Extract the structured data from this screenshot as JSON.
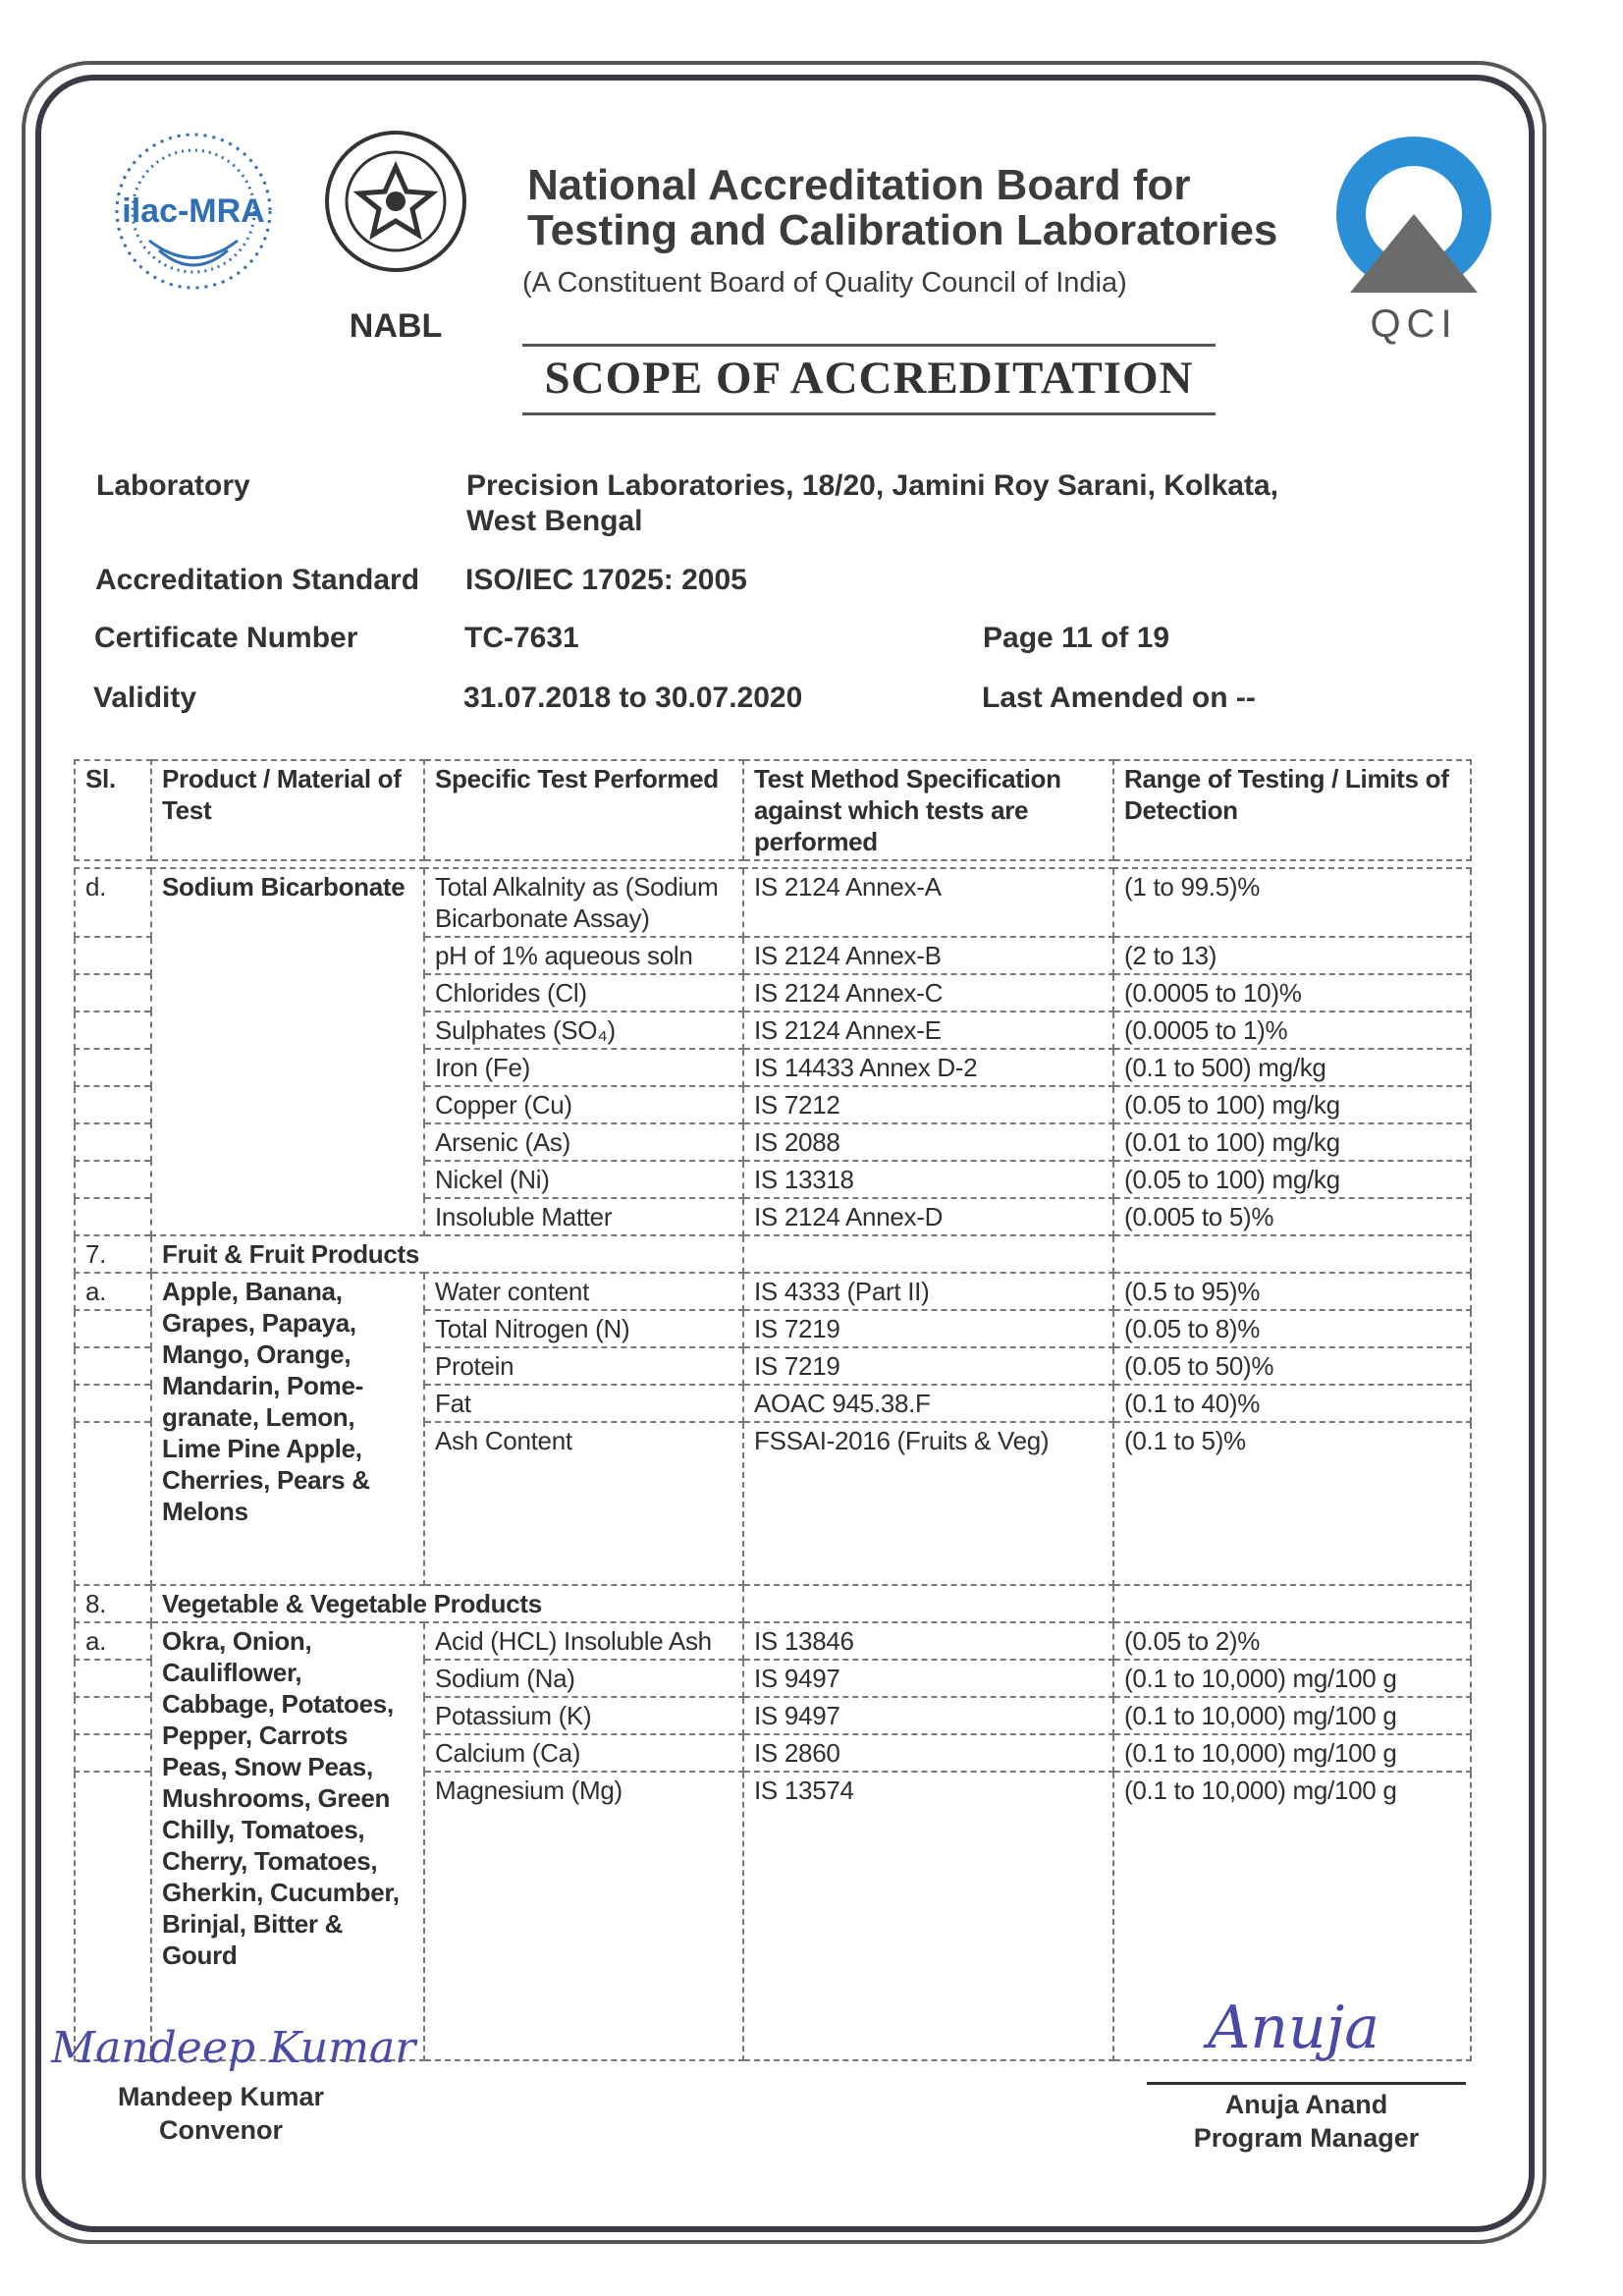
{
  "header": {
    "logo_left_text": "ilac-MRA",
    "logo_nabl_text": "NABL",
    "logo_qci_text": "QCI",
    "org_title_line1": "National Accreditation Board for",
    "org_title_line2": "Testing and Calibration Laboratories",
    "org_subtitle": "(A Constituent Board of Quality Council of India)",
    "doc_title": "SCOPE OF ACCREDITATION",
    "colors": {
      "qci_blue": "#2a8fd6",
      "qci_grey": "#6b6b6b",
      "ilac_blue": "#2f6fb5"
    }
  },
  "info": {
    "laboratory_label": "Laboratory",
    "laboratory_line1": "Precision Laboratories, 18/20, Jamini Roy Sarani, Kolkata,",
    "laboratory_line2": "West Bengal",
    "standard_label": "Accreditation Standard",
    "standard_value": "ISO/IEC 17025: 2005",
    "certificate_label": "Certificate Number",
    "certificate_value": "TC-7631",
    "page": "Page 11 of 19",
    "validity_label": "Validity",
    "validity_value": "31.07.2018 to 30.07.2020",
    "amended": "Last Amended on  --"
  },
  "table": {
    "headers": [
      "Sl.",
      "Product / Material of Test",
      "Specific Test Performed",
      "Test Method Specification against which tests are performed",
      "Range of Testing / Limits of Detection"
    ],
    "rows": [
      {
        "type": "group",
        "sl": "d.",
        "product": "Sodium Bicarbonate",
        "tests": [
          {
            "test": "Total Alkalnity as (Sodium Bicarbonate Assay)",
            "method": "IS 2124 Annex-A",
            "range": "(1 to 99.5)%"
          },
          {
            "test": "pH of 1% aqueous soln",
            "method": "IS 2124 Annex-B",
            "range": "(2 to 13)"
          },
          {
            "test": "Chlorides (Cl)",
            "method": "IS 2124 Annex-C",
            "range": "(0.0005 to 10)%"
          },
          {
            "test": "Sulphates (SO₄)",
            "method": "IS 2124 Annex-E",
            "range": "(0.0005 to 1)%"
          },
          {
            "test": "Iron (Fe)",
            "method": "IS 14433 Annex D-2",
            "range": "(0.1 to 500) mg/kg"
          },
          {
            "test": "Copper (Cu)",
            "method": "IS 7212",
            "range": "(0.05 to 100) mg/kg"
          },
          {
            "test": "Arsenic (As)",
            "method": "IS 2088",
            "range": "(0.01 to 100) mg/kg"
          },
          {
            "test": "Nickel (Ni)",
            "method": "IS 13318",
            "range": "(0.05 to 100) mg/kg"
          },
          {
            "test": "Insoluble Matter",
            "method": "IS 2124 Annex-D",
            "range": "(0.005 to 5)%"
          }
        ]
      },
      {
        "type": "section",
        "sl": "7.",
        "title": "Fruit & Fruit Products"
      },
      {
        "type": "group",
        "sl": "a.",
        "product": "Apple, Banana, Grapes, Papaya, Mango, Orange, Mandarin, Pome-granate, Lemon, Lime Pine Apple, Cherries, Pears & Melons",
        "tests": [
          {
            "test": "Water content",
            "method": "IS 4333 (Part II)",
            "range": "(0.5 to 95)%"
          },
          {
            "test": "Total Nitrogen (N)",
            "method": "IS 7219",
            "range": "(0.05 to 8)%"
          },
          {
            "test": "Protein",
            "method": "IS 7219",
            "range": "(0.05 to 50)%"
          },
          {
            "test": "Fat",
            "method": "AOAC 945.38.F",
            "range": "(0.1 to 40)%"
          },
          {
            "test": "Ash Content",
            "method": "FSSAI-2016 (Fruits & Veg)",
            "range": "(0.1 to 5)%"
          }
        ]
      },
      {
        "type": "section",
        "sl": "8.",
        "title": "Vegetable & Vegetable Products"
      },
      {
        "type": "group",
        "sl": "a.",
        "product": "Okra, Onion, Cauliflower, Cabbage, Potatoes, Pepper, Carrots Peas, Snow Peas, Mushrooms, Green Chilly, Tomatoes, Cherry, Tomatoes, Gherkin, Cucumber, Brinjal, Bitter & Gourd",
        "tests": [
          {
            "test": "Acid (HCL) Insoluble Ash",
            "method": "IS 13846",
            "range": "(0.05 to 2)%"
          },
          {
            "test": "Sodium (Na)",
            "method": "IS 9497",
            "range": "(0.1 to 10,000) mg/100 g"
          },
          {
            "test": "Potassium (K)",
            "method": "IS 9497",
            "range": "(0.1 to 10,000) mg/100 g"
          },
          {
            "test": "Calcium (Ca)",
            "method": "IS 2860",
            "range": "(0.1 to 10,000) mg/100 g"
          },
          {
            "test": "Magnesium (Mg)",
            "method": "IS 13574",
            "range": "(0.1 to 10,000) mg/100 g"
          }
        ]
      }
    ]
  },
  "signatures": {
    "left_signature": "Mandeep Kumar",
    "left_name": "Mandeep Kumar",
    "left_role": "Convenor",
    "right_signature": "Anuja",
    "right_name": "Anuja Anand",
    "right_role": "Program Manager"
  }
}
